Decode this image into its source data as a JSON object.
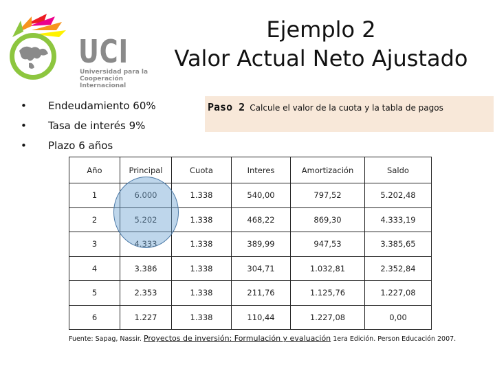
{
  "logo": {
    "acronym": "UCI",
    "line1": "Universidad para la",
    "line2": "Cooperación Internacional",
    "colors": {
      "grey": "#8a8a8a",
      "green": "#8dc63f",
      "orange": "#f7941d",
      "red": "#ed1c24",
      "magenta": "#ec008c",
      "yellow": "#fff200"
    }
  },
  "title": {
    "line1": "Ejemplo 2",
    "line2": "Valor Actual Neto Ajustado"
  },
  "bullets": [
    "Endeudamiento 60%",
    "Tasa de interés 9%",
    "Plazo 6 años"
  ],
  "step": {
    "label": "Paso 2",
    "text": "Calcule el valor de la cuota y la tabla de pagos",
    "background": "#f8e8d9"
  },
  "table": {
    "headers": [
      "Año",
      "Principal",
      "Cuota",
      "Interes",
      "Amortización",
      "Saldo"
    ],
    "rows": [
      [
        "1",
        "6.000",
        "1.338",
        "540,00",
        "797,52",
        "5.202,48"
      ],
      [
        "2",
        "5.202",
        "1.338",
        "468,22",
        "869,30",
        "4.333,19"
      ],
      [
        "3",
        "4.333",
        "1.338",
        "389,99",
        "947,53",
        "3.385,65"
      ],
      [
        "4",
        "3.386",
        "1.338",
        "304,71",
        "1.032,81",
        "2.352,84"
      ],
      [
        "5",
        "2.353",
        "1.338",
        "211,76",
        "1.125,76",
        "1.227,08"
      ],
      [
        "6",
        "1.227",
        "1.338",
        "110,44",
        "1.227,08",
        "0,00"
      ]
    ]
  },
  "source": {
    "prefix": "Fuente: Sapag, Nassir.",
    "book": "Proyectos de inversión: Formulación y evaluación",
    "suffix": "1era Edición. Person Educación 2007."
  }
}
